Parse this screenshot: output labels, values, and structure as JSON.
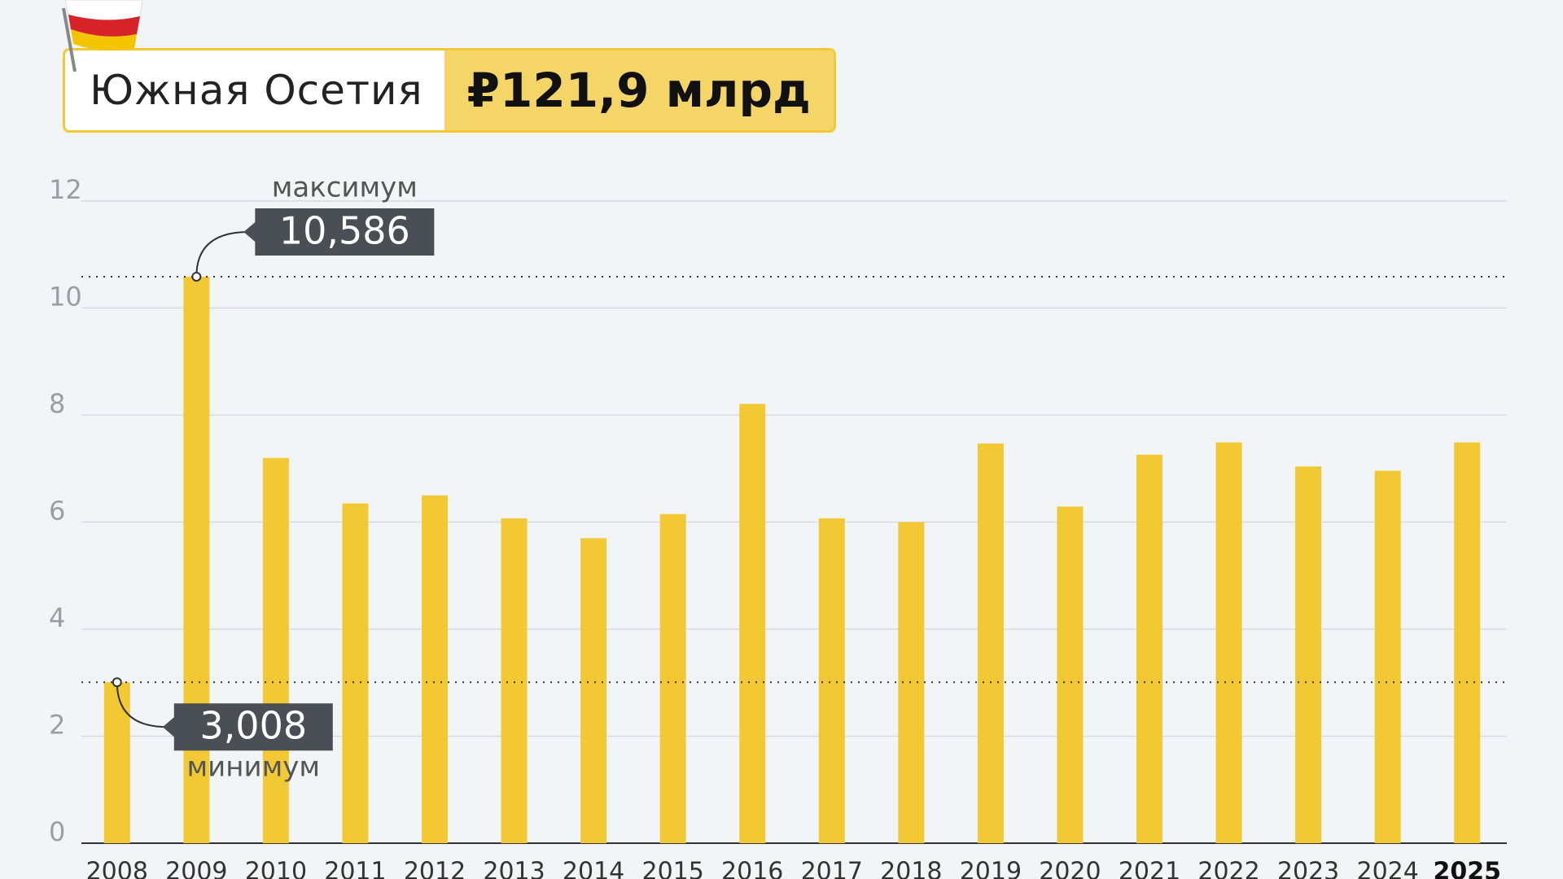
{
  "header": {
    "region": "Южная Осетия",
    "total": "₽121,9 млрд"
  },
  "chart_data": {
    "type": "bar",
    "categories": [
      "2008",
      "2009",
      "2010",
      "2011",
      "2012",
      "2013",
      "2014",
      "2015",
      "2016",
      "2017",
      "2018",
      "2019",
      "2020",
      "2021",
      "2022",
      "2023",
      "2024",
      "2025"
    ],
    "values": [
      3.008,
      10.586,
      7.2,
      6.35,
      6.5,
      6.07,
      5.7,
      6.15,
      8.21,
      6.07,
      6.0,
      7.47,
      6.29,
      7.26,
      7.49,
      7.04,
      6.96,
      7.49
    ],
    "color": "#f2c935",
    "ylim": [
      0,
      12
    ],
    "yticks": [
      0,
      2,
      4,
      6,
      8,
      10,
      12
    ],
    "grid": true,
    "annotations": [
      {
        "text": "максимум",
        "value": 10.586,
        "label": "10,586"
      },
      {
        "text": "минимум",
        "value": 3.008,
        "label": "3,008"
      }
    ]
  }
}
